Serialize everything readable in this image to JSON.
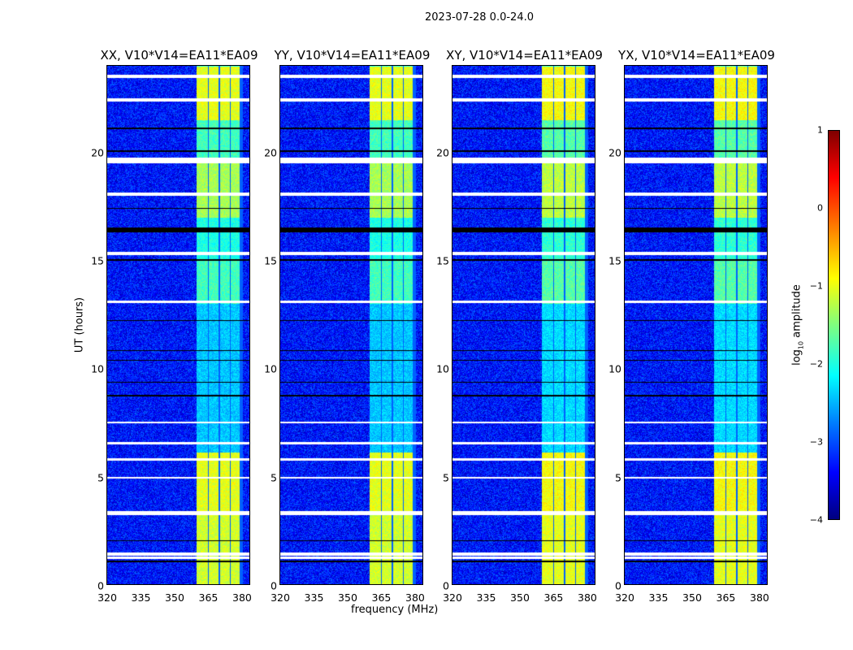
{
  "suptitle": "2023-07-28 0.0-24.0",
  "chart_data": {
    "type": "heatmap",
    "panels": [
      {
        "title": "XX, V10*V14=EA11*EA09"
      },
      {
        "title": "YY, V10*V14=EA11*EA09"
      },
      {
        "title": "XY, V10*V14=EA11*EA09"
      },
      {
        "title": "YX, V10*V14=EA11*EA09"
      }
    ],
    "xlabel": "frequency (MHz)",
    "ylabel": "UT (hours)",
    "xlim": [
      320,
      384
    ],
    "ylim": [
      0,
      24
    ],
    "xticks": [
      "320",
      "335",
      "350",
      "365",
      "380"
    ],
    "xtick_values": [
      320,
      335,
      350,
      365,
      380
    ],
    "yticks": [
      "0",
      "5",
      "10",
      "15",
      "20"
    ],
    "ytick_values": [
      0,
      5,
      10,
      15,
      20
    ],
    "colorbar": {
      "label": "log10 amplitude",
      "ticks": [
        "1",
        "0",
        "−1",
        "−2",
        "−3",
        "−4"
      ],
      "tick_values": [
        1,
        0,
        -1,
        -2,
        -3,
        -4
      ],
      "range": [
        -4,
        1
      ]
    },
    "background_level": -3.3,
    "bright_band_mhz": [
      360,
      381
    ],
    "bright_subbands_mhz": [
      [
        360,
        365
      ],
      [
        365.5,
        370
      ],
      [
        370.5,
        375
      ],
      [
        375.5,
        379.5
      ]
    ],
    "bright_level_by_hour": [
      [
        0,
        3.3,
        -1.1
      ],
      [
        3.3,
        6.1,
        -1.0
      ],
      [
        6.1,
        13,
        -2.4
      ],
      [
        13,
        15,
        -1.8
      ],
      [
        15,
        17,
        -2.0
      ],
      [
        17,
        19.5,
        -1.3
      ],
      [
        19.5,
        21.5,
        -1.8
      ],
      [
        21.5,
        24,
        -1.0
      ]
    ],
    "flagged_white_hours": [
      [
        23.45,
        23.6
      ],
      [
        22.35,
        22.5
      ],
      [
        19.5,
        19.75
      ],
      [
        18.0,
        18.15
      ],
      [
        15.25,
        15.4
      ],
      [
        13.05,
        13.15
      ],
      [
        7.45,
        7.55
      ],
      [
        6.5,
        6.6
      ],
      [
        5.75,
        5.85
      ],
      [
        4.9,
        5.0
      ],
      [
        3.2,
        3.4
      ],
      [
        1.35,
        1.5
      ],
      [
        1.2,
        1.3
      ]
    ],
    "flagged_black_hours": [
      [
        16.3,
        16.55
      ],
      [
        15.0,
        15.05
      ],
      [
        12.2,
        12.25
      ],
      [
        10.8,
        10.85
      ],
      [
        10.35,
        10.4
      ],
      [
        9.35,
        9.4
      ],
      [
        8.7,
        8.8
      ],
      [
        2.0,
        2.05
      ],
      [
        1.05,
        1.1
      ],
      [
        21.1,
        21.15
      ],
      [
        20.05,
        20.1
      ],
      [
        17.4,
        17.45
      ]
    ]
  }
}
